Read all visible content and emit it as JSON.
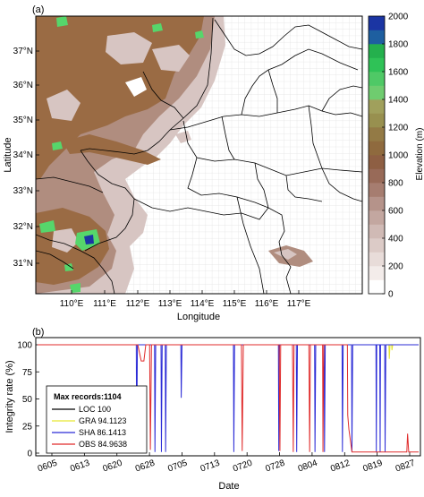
{
  "panel_a": {
    "label": "(a)",
    "xlabel": "Longitude",
    "ylabel": "Latitude",
    "x_ticks": [
      "110°E",
      "111°E",
      "112°E",
      "113°E",
      "114°E",
      "115°E",
      "116°E",
      "117°E"
    ],
    "y_ticks": [
      "31°N",
      "32°N",
      "33°N",
      "34°N",
      "35°N",
      "36°N",
      "37°N"
    ],
    "colorbar_label": "Elevation (m)",
    "colorbar_ticks": [
      "0",
      "200",
      "400",
      "600",
      "800",
      "1000",
      "1200",
      "1400",
      "1600",
      "1800",
      "2000"
    ],
    "colors": {
      "terrain_light": "#d7c5c2",
      "terrain_mid": "#b08d7f",
      "terrain_brown": "#9a6b44",
      "terrain_green": "#56d66b",
      "terrain_top": "#1b35a3",
      "plain": "#ffffff"
    }
  },
  "chart_data": {
    "type": "line",
    "label": "(b)",
    "xlabel": "Date",
    "ylabel": "Integrity rate (%)",
    "x_ticks": [
      "0605",
      "0613",
      "0620",
      "0628",
      "0705",
      "0713",
      "0720",
      "0728",
      "0804",
      "0812",
      "0819",
      "0827"
    ],
    "y_ticks": [
      "0",
      "25",
      "50",
      "75",
      "100"
    ],
    "ylim": [
      0,
      100
    ],
    "legend_title": "Max records:1104",
    "legend_position": "lower-left",
    "series": [
      {
        "name": "LOC 100",
        "color": "#000000",
        "points": [
          [
            0,
            100
          ],
          [
            100,
            100
          ]
        ]
      },
      {
        "name": "GRA 94.1123",
        "color": "#e6e633",
        "points": [
          [
            0,
            100
          ],
          [
            92.2,
            100
          ],
          [
            92.3,
            87
          ],
          [
            92.5,
            100
          ],
          [
            92.9,
            100
          ],
          [
            93.0,
            95
          ],
          [
            93.2,
            100
          ],
          [
            100,
            100
          ]
        ]
      },
      {
        "name": "SHA 86.1413",
        "color": "#2b2bd6",
        "points": [
          [
            0,
            100
          ],
          [
            25.9,
            100
          ],
          [
            26.0,
            2
          ],
          [
            26.2,
            100
          ],
          [
            30.7,
            100
          ],
          [
            30.8,
            1
          ],
          [
            31.0,
            100
          ],
          [
            32.4,
            100
          ],
          [
            32.5,
            1
          ],
          [
            32.7,
            100
          ],
          [
            33.5,
            100
          ],
          [
            33.6,
            1
          ],
          [
            33.8,
            100
          ],
          [
            37.6,
            100
          ],
          [
            37.7,
            51
          ],
          [
            37.9,
            100
          ],
          [
            51.4,
            100
          ],
          [
            51.5,
            1
          ],
          [
            51.7,
            100
          ],
          [
            63.2,
            100
          ],
          [
            63.3,
            2
          ],
          [
            63.5,
            100
          ],
          [
            67.9,
            100
          ],
          [
            68.0,
            1
          ],
          [
            68.2,
            100
          ],
          [
            72.7,
            100
          ],
          [
            72.8,
            1
          ],
          [
            73.0,
            100
          ],
          [
            75.2,
            100
          ],
          [
            75.3,
            1
          ],
          [
            75.5,
            100
          ],
          [
            79.9,
            100
          ],
          [
            80.0,
            1
          ],
          [
            80.2,
            100
          ],
          [
            82.4,
            100
          ],
          [
            82.5,
            1
          ],
          [
            82.7,
            100
          ],
          [
            88.8,
            100
          ],
          [
            88.9,
            1
          ],
          [
            89.0,
            100
          ],
          [
            89.8,
            100
          ],
          [
            89.9,
            1
          ],
          [
            90.0,
            100
          ],
          [
            91.1,
            100
          ],
          [
            91.2,
            1
          ],
          [
            91.4,
            100
          ],
          [
            100,
            100
          ]
        ]
      },
      {
        "name": "OBS 84.9638",
        "color": "#e02b2b",
        "points": [
          [
            0,
            100
          ],
          [
            26.3,
            100
          ],
          [
            27.2,
            85
          ],
          [
            27.9,
            85
          ],
          [
            28.4,
            100
          ],
          [
            29.4,
            100
          ],
          [
            29.6,
            3
          ],
          [
            29.9,
            100
          ],
          [
            53.5,
            100
          ],
          [
            53.7,
            2
          ],
          [
            54.0,
            100
          ],
          [
            63.4,
            100
          ],
          [
            63.6,
            2
          ],
          [
            63.8,
            100
          ],
          [
            66.9,
            100
          ],
          [
            67.1,
            1
          ],
          [
            67.3,
            100
          ],
          [
            71.2,
            100
          ],
          [
            71.4,
            1
          ],
          [
            71.6,
            100
          ],
          [
            74.8,
            100
          ],
          [
            74.9,
            1
          ],
          [
            75.1,
            100
          ],
          [
            81.3,
            100
          ],
          [
            81.4,
            35
          ],
          [
            81.7,
            22
          ],
          [
            82.5,
            1
          ],
          [
            96.9,
            1
          ],
          [
            97.1,
            18
          ],
          [
            97.4,
            1
          ],
          [
            100,
            1
          ]
        ]
      }
    ]
  }
}
